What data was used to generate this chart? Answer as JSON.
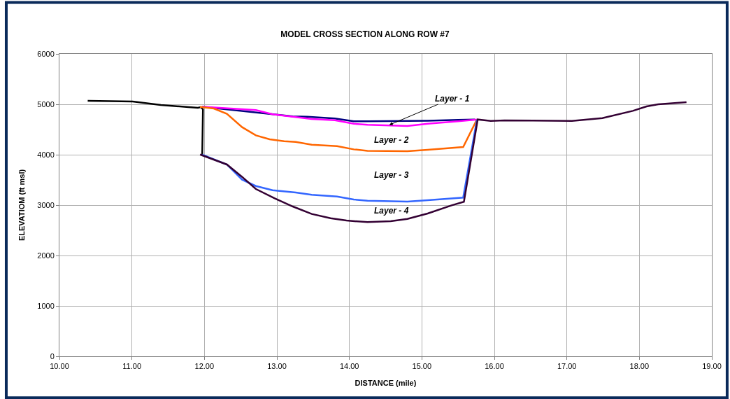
{
  "chart_data": {
    "type": "line",
    "title": "MODEL CROSS SECTION ALONG ROW #7",
    "xlabel": "DISTANCE (mile)",
    "ylabel": "ELEVATIOM (ft msl)",
    "xlim": [
      10,
      19
    ],
    "xticks": [
      {
        "value": 10,
        "label": "10.00"
      },
      {
        "value": 11,
        "label": "11.00"
      },
      {
        "value": 12,
        "label": "12.00"
      },
      {
        "value": 13,
        "label": "13.00"
      },
      {
        "value": 14,
        "label": "14.00"
      },
      {
        "value": 15,
        "label": "15.00"
      },
      {
        "value": 16,
        "label": "16.00"
      },
      {
        "value": 17,
        "label": "17.00"
      },
      {
        "value": 18,
        "label": "18.00"
      },
      {
        "value": 19,
        "label": "19.00"
      }
    ],
    "ylim": [
      0,
      6000
    ],
    "yticks": [
      0,
      1000,
      2000,
      3000,
      4000,
      5000,
      6000
    ],
    "grid": true,
    "marker": "none",
    "line_style": "solid",
    "series": [
      {
        "color": "#000000",
        "x": [
          10.39,
          11.01,
          11.4,
          11.78,
          11.91,
          11.95,
          11.98,
          11.97
        ],
        "values": [
          5069,
          5056,
          4986,
          4944,
          4931,
          4944,
          4900,
          4000
        ]
      },
      {
        "color": "#000080",
        "x": [
          11.97,
          13.22,
          13.42,
          13.8,
          14.06,
          14.25,
          14.8,
          15.08,
          15.5,
          15.73
        ],
        "values": [
          4950,
          4760,
          4754,
          4718,
          4662,
          4662,
          4671,
          4675,
          4690,
          4699
        ]
      },
      {
        "color": "#ff00ff",
        "x": [
          11.97,
          12.71,
          12.94,
          13.22,
          13.48,
          13.8,
          14.06,
          14.25,
          14.8,
          15.08,
          15.5,
          15.76
        ],
        "values": [
          4950,
          4884,
          4801,
          4754,
          4708,
          4685,
          4615,
          4593,
          4569,
          4615,
          4662,
          4699
        ]
      },
      {
        "color": "#ff6600",
        "x": [
          11.94,
          12.13,
          12.31,
          12.52,
          12.71,
          12.9,
          13.1,
          13.26,
          13.48,
          13.83,
          14.06,
          14.25,
          14.8,
          15.08,
          15.57,
          15.76
        ],
        "values": [
          4949,
          4917,
          4810,
          4546,
          4384,
          4306,
          4268,
          4254,
          4199,
          4171,
          4106,
          4078,
          4069,
          4097,
          4153,
          4699
        ]
      },
      {
        "color": "#3366ff",
        "x": [
          11.97,
          12.31,
          12.52,
          12.71,
          12.94,
          13.26,
          13.48,
          13.83,
          14.06,
          14.25,
          14.8,
          15.08,
          15.57,
          15.76
        ],
        "values": [
          4000,
          3806,
          3504,
          3379,
          3296,
          3250,
          3204,
          3171,
          3111,
          3088,
          3069,
          3097,
          3148,
          4699
        ]
      },
      {
        "color": "#330033",
        "x": [
          11.94,
          12.31,
          12.52,
          12.71,
          12.97,
          13.22,
          13.48,
          13.74,
          13.96,
          14.25,
          14.57,
          14.8,
          15.08,
          15.41,
          15.58,
          15.77,
          15.95,
          16.14,
          17.07,
          17.49,
          17.91,
          18.1,
          18.26,
          18.65
        ],
        "values": [
          4004,
          3806,
          3560,
          3319,
          3135,
          2972,
          2824,
          2741,
          2694,
          2662,
          2681,
          2727,
          2833,
          2995,
          3065,
          4699,
          4671,
          4681,
          4671,
          4726,
          4870,
          4958,
          5000,
          5042
        ]
      }
    ],
    "annotations": [
      {
        "text": "Layer - 1",
        "x": 14.55,
        "y": 4590
      },
      "Layer - 2",
      "Layer - 3",
      "Layer - 4"
    ]
  }
}
